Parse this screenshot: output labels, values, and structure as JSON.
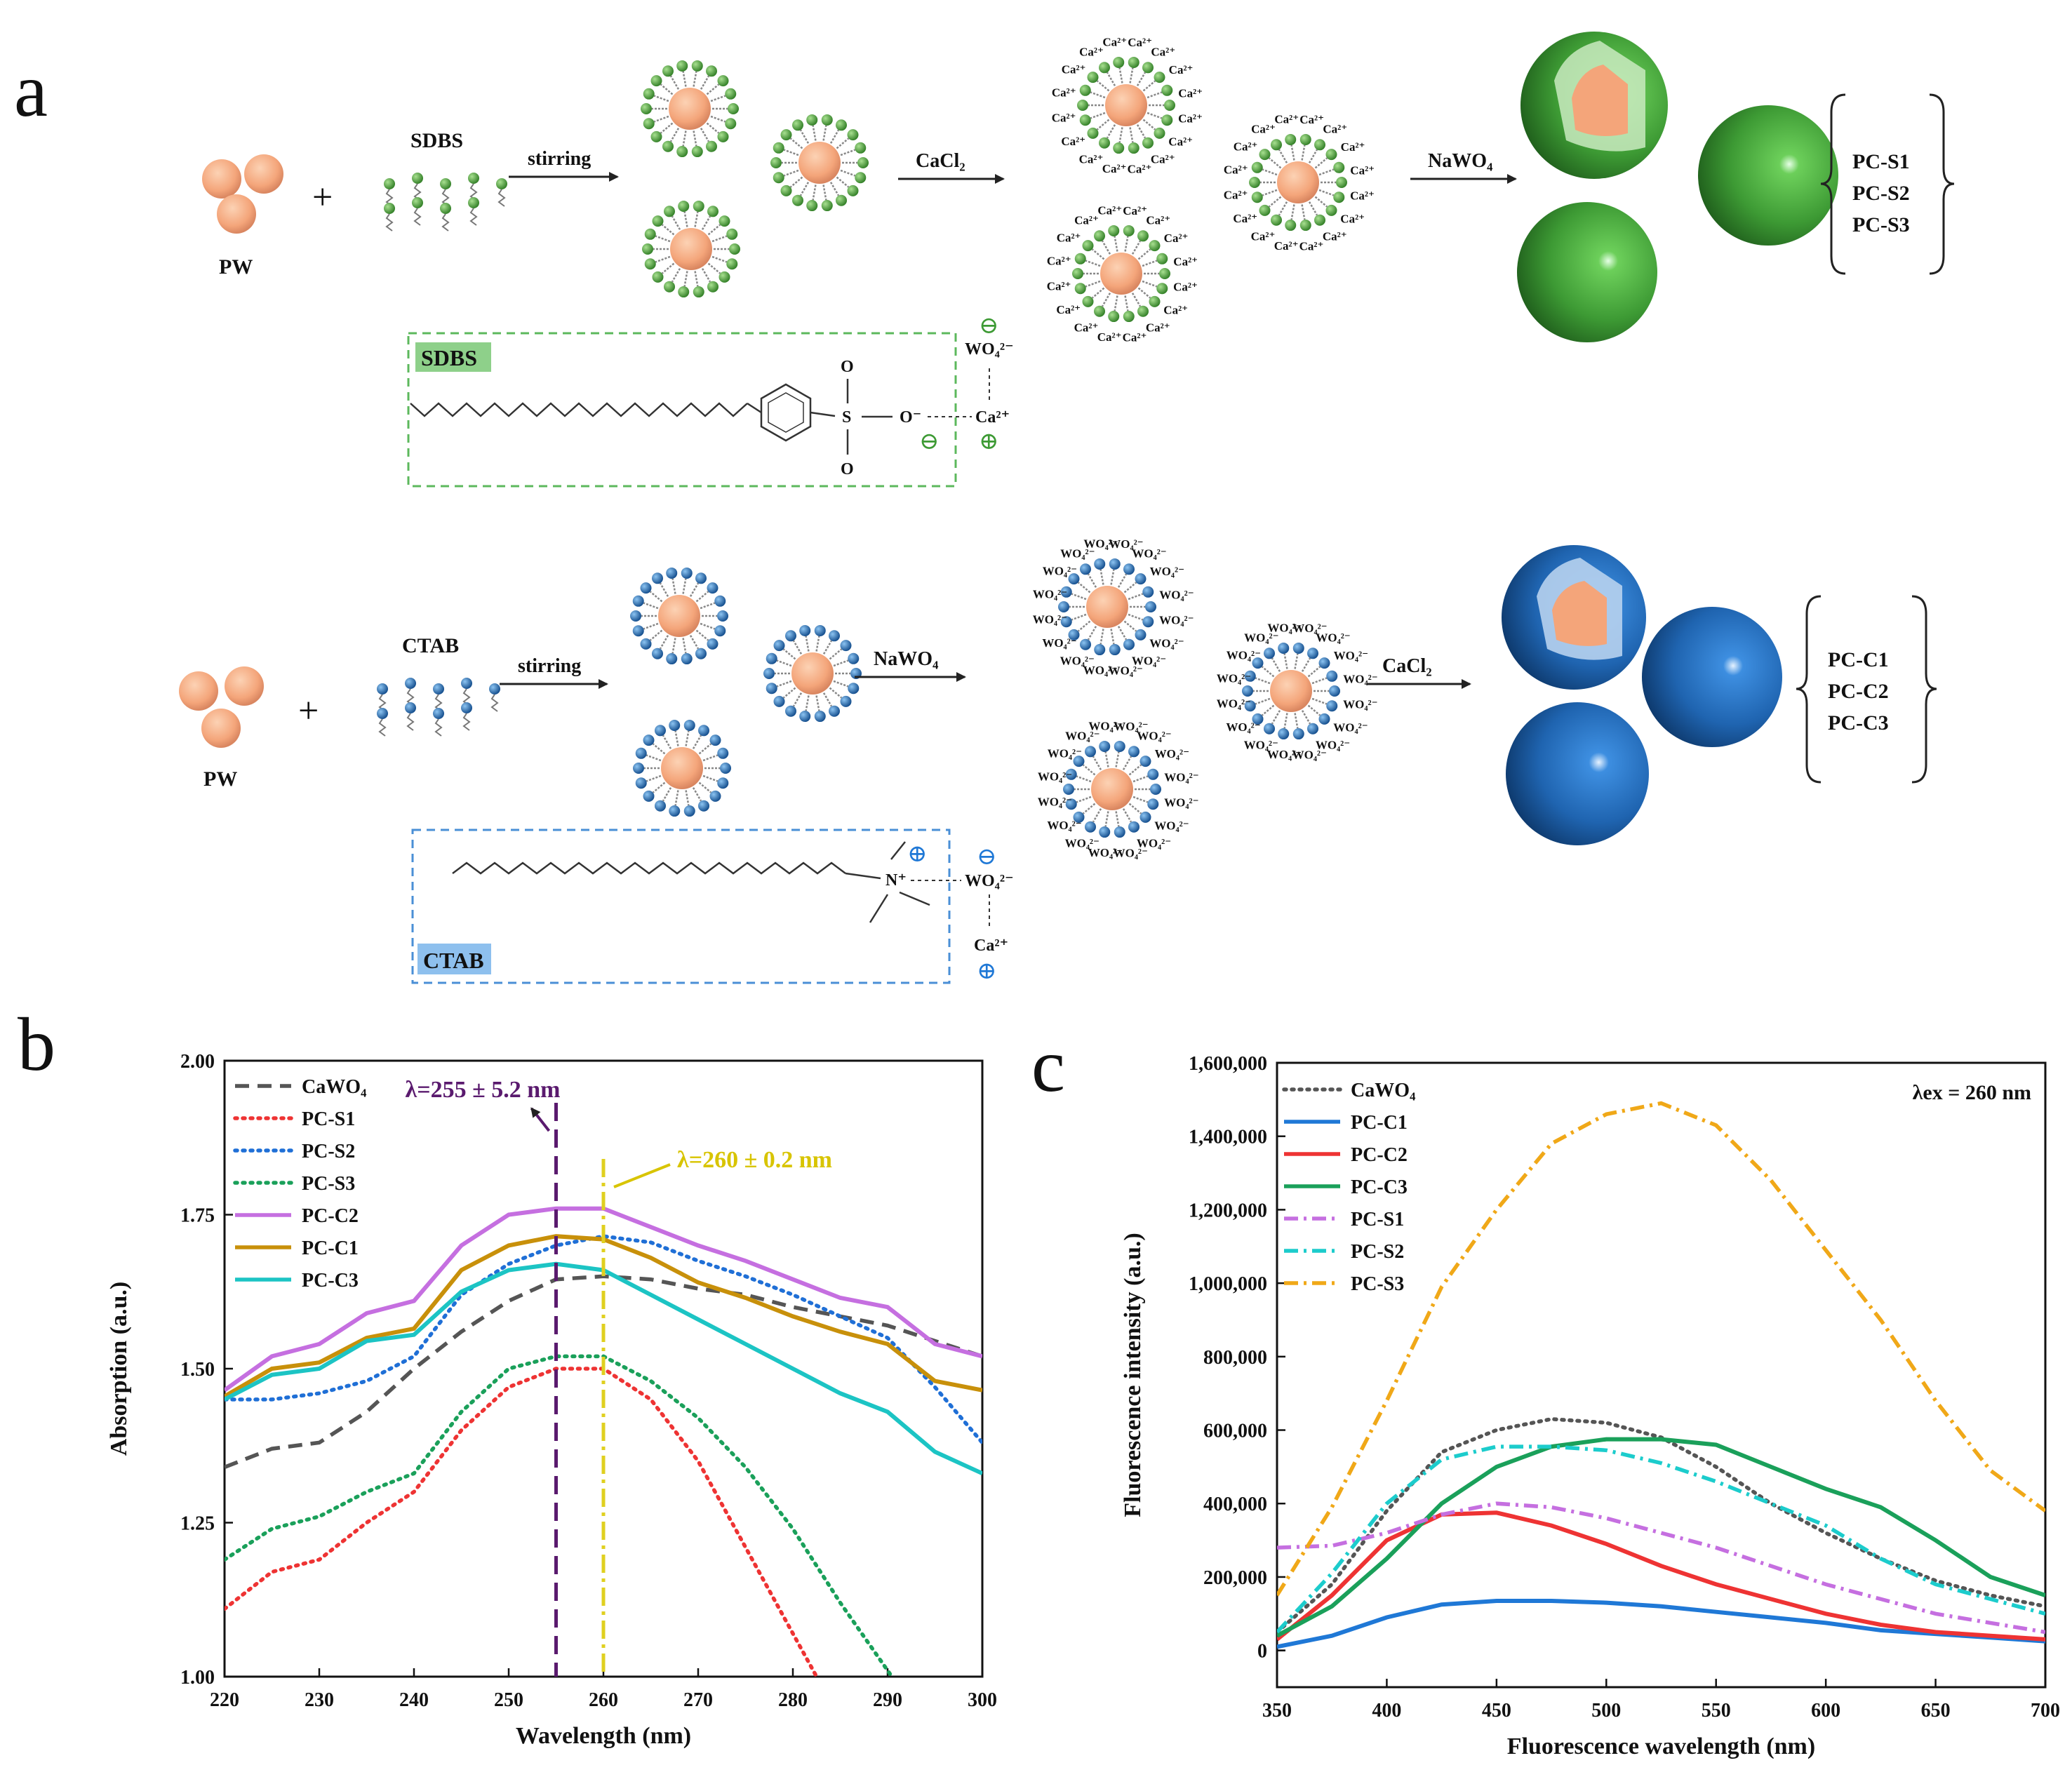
{
  "panel_a": {
    "letter": "a",
    "top_row": {
      "reactant": "PW",
      "plus": "+",
      "surfactant": "SDBS",
      "step1": "stirring",
      "step2": "CaCl₂",
      "step3": "NaWO₄",
      "ion": "Ca²⁺",
      "products": [
        "PC-S1",
        "PC-S2",
        "PC-S3"
      ],
      "inset": {
        "badge": "SDBS",
        "atoms": {
          "s": "S",
          "o_top": "O",
          "o_bottom": "O",
          "o_minus": "O⁻",
          "ca": "Ca²⁺",
          "wo4": "WO₄²⁻",
          "minus": "⊖",
          "plus": "⊕"
        }
      }
    },
    "bottom_row": {
      "reactant": "PW",
      "plus": "+",
      "surfactant": "CTAB",
      "step1": "stirring",
      "step2": "NaWO₄",
      "step3": "CaCl₂",
      "ion": "WO₄²⁻",
      "products": [
        "PC-C1",
        "PC-C2",
        "PC-C3"
      ],
      "inset": {
        "badge": "CTAB",
        "atoms": {
          "n": "N⁺",
          "wo4": "WO₄²⁻",
          "ca": "Ca²⁺",
          "minus": "⊖",
          "plus": "⊕"
        }
      }
    }
  },
  "colors": {
    "core": "#f4a57a",
    "green": "#3d9a34",
    "blue": "#1f64b0",
    "green_dash": "#5cb85c",
    "blue_dash": "#4a8fd6"
  },
  "chart_data": [
    {
      "panel": "b",
      "type": "line",
      "xlabel": "Wavelength (nm)",
      "ylabel": "Absorption (a.u.)",
      "xlim": [
        220,
        300
      ],
      "ylim": [
        1.0,
        2.0
      ],
      "xticks": [
        "220",
        "230",
        "240",
        "250",
        "260",
        "270",
        "280",
        "290",
        "300"
      ],
      "yticks": [
        "1.00",
        "1.25",
        "1.50",
        "1.75",
        "2.00"
      ],
      "annotations": [
        {
          "text": "λ=255 ± 5.2 nm",
          "x": 255,
          "color": "#5a1a6e"
        },
        {
          "text": "λ=260 ± 0.2 nm",
          "x": 260,
          "color": "#e0d020"
        }
      ],
      "x": [
        220,
        225,
        230,
        235,
        240,
        245,
        250,
        255,
        260,
        265,
        270,
        275,
        280,
        285,
        290,
        295,
        300
      ],
      "series": [
        {
          "name": "CaWO₄",
          "color": "#555555",
          "style": "dash",
          "values": [
            1.34,
            1.37,
            1.38,
            1.43,
            1.5,
            1.56,
            1.61,
            1.645,
            1.65,
            1.645,
            1.63,
            1.62,
            1.6,
            1.585,
            1.57,
            1.545,
            1.52
          ]
        },
        {
          "name": "PC-S1",
          "color": "#ee3333",
          "style": "dot",
          "values": [
            1.11,
            1.17,
            1.19,
            1.25,
            1.3,
            1.4,
            1.47,
            1.5,
            1.5,
            1.45,
            1.35,
            1.21,
            1.07,
            null,
            null,
            null,
            null
          ]
        },
        {
          "name": "PC-S2",
          "color": "#1f6fd6",
          "style": "dot",
          "values": [
            1.45,
            1.45,
            1.46,
            1.48,
            1.52,
            1.62,
            1.67,
            1.7,
            1.715,
            1.705,
            1.675,
            1.65,
            1.62,
            1.585,
            1.55,
            1.47,
            1.38
          ]
        },
        {
          "name": "PC-S3",
          "color": "#1aa05a",
          "style": "dot",
          "values": [
            1.19,
            1.24,
            1.26,
            1.3,
            1.33,
            1.43,
            1.5,
            1.52,
            1.52,
            1.48,
            1.42,
            1.34,
            1.24,
            1.12,
            1.01,
            null,
            null
          ]
        },
        {
          "name": "PC-C2",
          "color": "#c56fe0",
          "style": "solid",
          "values": [
            1.465,
            1.52,
            1.54,
            1.59,
            1.61,
            1.7,
            1.75,
            1.76,
            1.76,
            1.73,
            1.7,
            1.675,
            1.645,
            1.615,
            1.6,
            1.54,
            1.52
          ]
        },
        {
          "name": "PC-C1",
          "color": "#c8900a",
          "style": "solid",
          "values": [
            1.455,
            1.5,
            1.51,
            1.55,
            1.565,
            1.66,
            1.7,
            1.715,
            1.71,
            1.68,
            1.64,
            1.615,
            1.585,
            1.56,
            1.54,
            1.48,
            1.465
          ]
        },
        {
          "name": "PC-C3",
          "color": "#1cc4c4",
          "style": "solid",
          "values": [
            1.45,
            1.49,
            1.5,
            1.545,
            1.555,
            1.625,
            1.66,
            1.67,
            1.66,
            1.62,
            1.58,
            1.54,
            1.5,
            1.46,
            1.43,
            1.365,
            1.33
          ]
        }
      ]
    },
    {
      "panel": "c",
      "type": "line",
      "xlabel": "Fluorescence wavelength (nm)",
      "ylabel": "Fluorescence intensity (a.u.)",
      "xlim": [
        350,
        700
      ],
      "ylim": [
        -100000,
        1600000
      ],
      "xticks": [
        "350",
        "400",
        "450",
        "500",
        "550",
        "600",
        "650",
        "700"
      ],
      "yticks": [
        "0",
        "200,000",
        "400,000",
        "600,000",
        "800,000",
        "1,000,000",
        "1,200,000",
        "1,400,000",
        "1,600,000"
      ],
      "annotations": [
        {
          "text": "λex = 260 nm"
        }
      ],
      "x": [
        350,
        375,
        400,
        425,
        450,
        475,
        500,
        525,
        550,
        575,
        600,
        625,
        650,
        675,
        700
      ],
      "series": [
        {
          "name": "CaWO₄",
          "color": "#555555",
          "style": "dot",
          "values": [
            50000,
            180000,
            380000,
            540000,
            600000,
            630000,
            620000,
            580000,
            500000,
            400000,
            320000,
            250000,
            190000,
            150000,
            120000
          ]
        },
        {
          "name": "PC-C1",
          "color": "#1f78d6",
          "style": "solid",
          "values": [
            10000,
            40000,
            90000,
            125000,
            135000,
            135000,
            130000,
            120000,
            105000,
            90000,
            75000,
            55000,
            45000,
            35000,
            25000
          ]
        },
        {
          "name": "PC-C2",
          "color": "#ee3333",
          "style": "solid",
          "values": [
            30000,
            150000,
            300000,
            370000,
            375000,
            340000,
            290000,
            230000,
            180000,
            140000,
            100000,
            70000,
            50000,
            40000,
            30000
          ]
        },
        {
          "name": "PC-C3",
          "color": "#1aa05a",
          "style": "solid",
          "values": [
            40000,
            120000,
            250000,
            400000,
            500000,
            555000,
            575000,
            575000,
            560000,
            500000,
            440000,
            390000,
            300000,
            200000,
            150000
          ]
        },
        {
          "name": "PC-S1",
          "color": "#c56fe0",
          "style": "dashdot",
          "values": [
            280000,
            285000,
            320000,
            370000,
            400000,
            390000,
            360000,
            320000,
            280000,
            230000,
            180000,
            140000,
            100000,
            75000,
            50000
          ]
        },
        {
          "name": "PC-S2",
          "color": "#1ccccc",
          "style": "dashdot",
          "values": [
            50000,
            210000,
            400000,
            520000,
            555000,
            555000,
            545000,
            510000,
            460000,
            400000,
            340000,
            250000,
            180000,
            140000,
            100000
          ]
        },
        {
          "name": "PC-S3",
          "color": "#f0a818",
          "style": "dashdot",
          "values": [
            150000,
            390000,
            680000,
            990000,
            1200000,
            1380000,
            1460000,
            1490000,
            1430000,
            1280000,
            1090000,
            900000,
            680000,
            490000,
            380000
          ]
        }
      ]
    }
  ]
}
